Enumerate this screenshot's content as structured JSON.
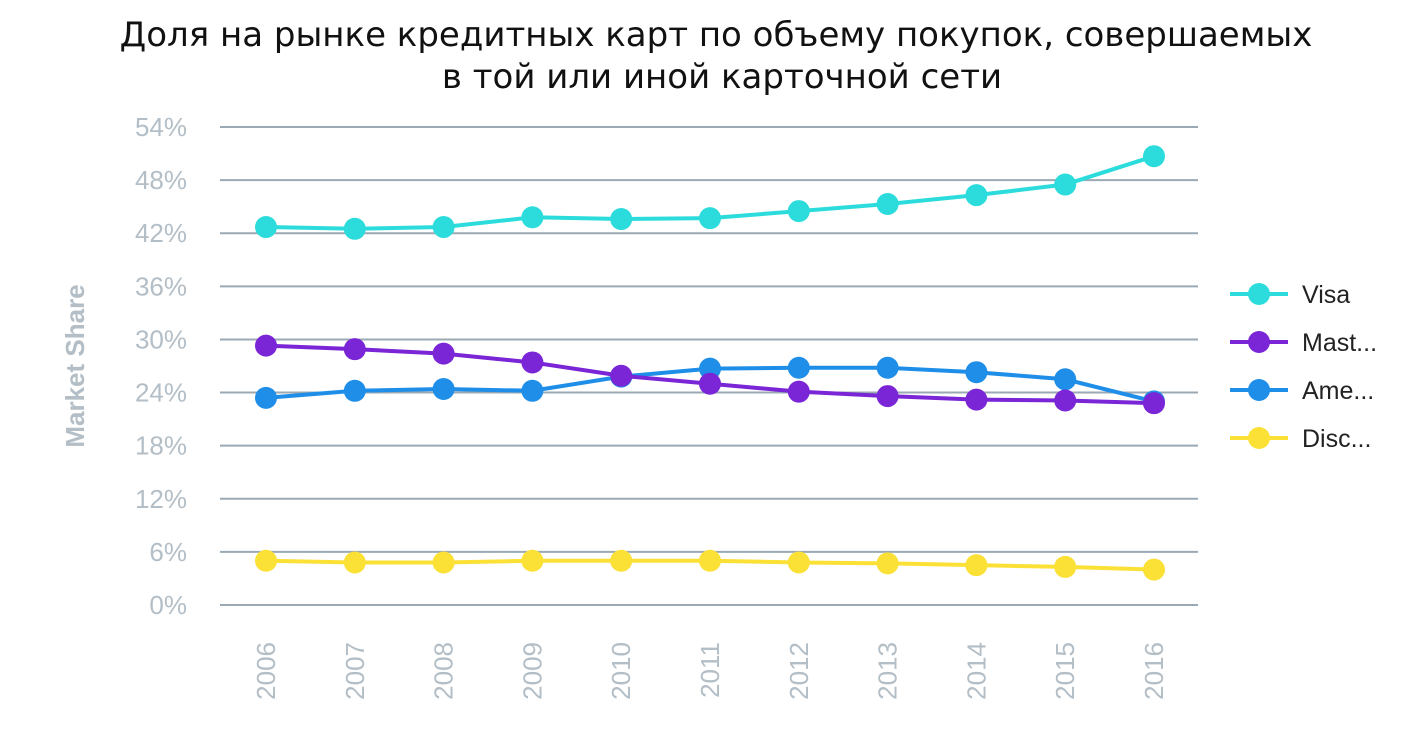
{
  "chart_data": {
    "type": "line",
    "title_lines": [
      "Доля на рынке кредитных карт по объему покупок, совершаемых",
      "в той или иной карточной сети"
    ],
    "xlabel": "",
    "ylabel": "Market Share",
    "ylim": [
      0,
      54
    ],
    "y_ticks": [
      0,
      6,
      12,
      18,
      24,
      30,
      36,
      42,
      48,
      54
    ],
    "y_tick_labels": [
      "0%",
      "6%",
      "12%",
      "18%",
      "24%",
      "30%",
      "36%",
      "42%",
      "48%",
      "54%"
    ],
    "grid": true,
    "legend_position": "right",
    "categories": [
      "2006",
      "2007",
      "2008",
      "2009",
      "2010",
      "2011",
      "2012",
      "2013",
      "2014",
      "2015",
      "2016"
    ],
    "series": [
      {
        "name": "Visa",
        "color": "#2cdcdc",
        "values": [
          42.7,
          42.5,
          42.7,
          43.8,
          43.6,
          43.7,
          44.5,
          45.3,
          46.3,
          47.5,
          50.7
        ]
      },
      {
        "name": "Mast...",
        "color": "#7a25d6",
        "values": [
          29.3,
          28.9,
          28.4,
          27.4,
          25.9,
          25.0,
          24.1,
          23.6,
          23.2,
          23.1,
          22.8
        ]
      },
      {
        "name": "Ame...",
        "color": "#1e8ee8",
        "values": [
          23.4,
          24.2,
          24.4,
          24.2,
          25.8,
          26.7,
          26.8,
          26.8,
          26.3,
          25.5,
          23.0
        ]
      },
      {
        "name": "Disc...",
        "color": "#fbe036",
        "values": [
          5.0,
          4.8,
          4.8,
          5.0,
          5.0,
          5.0,
          4.8,
          4.7,
          4.5,
          4.3,
          4.0
        ]
      }
    ]
  }
}
